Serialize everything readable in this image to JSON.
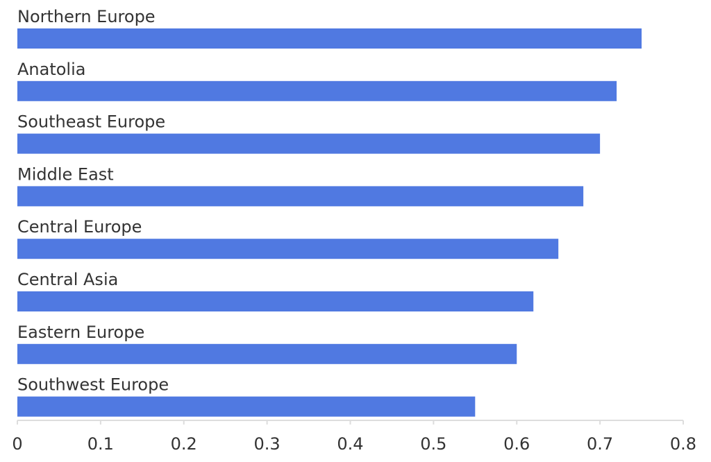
{
  "chart_data": {
    "type": "bar",
    "orientation": "horizontal",
    "categories": [
      "Northern Europe",
      "Anatolia",
      "Southeast Europe",
      "Middle East",
      "Central Europe",
      "Central Asia",
      "Eastern Europe",
      "Southwest Europe"
    ],
    "values": [
      0.75,
      0.72,
      0.7,
      0.68,
      0.65,
      0.62,
      0.6,
      0.55
    ],
    "xlim": [
      0,
      0.8
    ],
    "xticks": [
      "0",
      "0.1",
      "0.2",
      "0.3",
      "0.4",
      "0.5",
      "0.6",
      "0.7",
      "0.8"
    ],
    "title": "",
    "xlabel": "",
    "ylabel": "",
    "grid": false,
    "legend": "none",
    "bar_color": "#5079E1",
    "axis_color": "#dddddd",
    "text_color": "#333333"
  }
}
